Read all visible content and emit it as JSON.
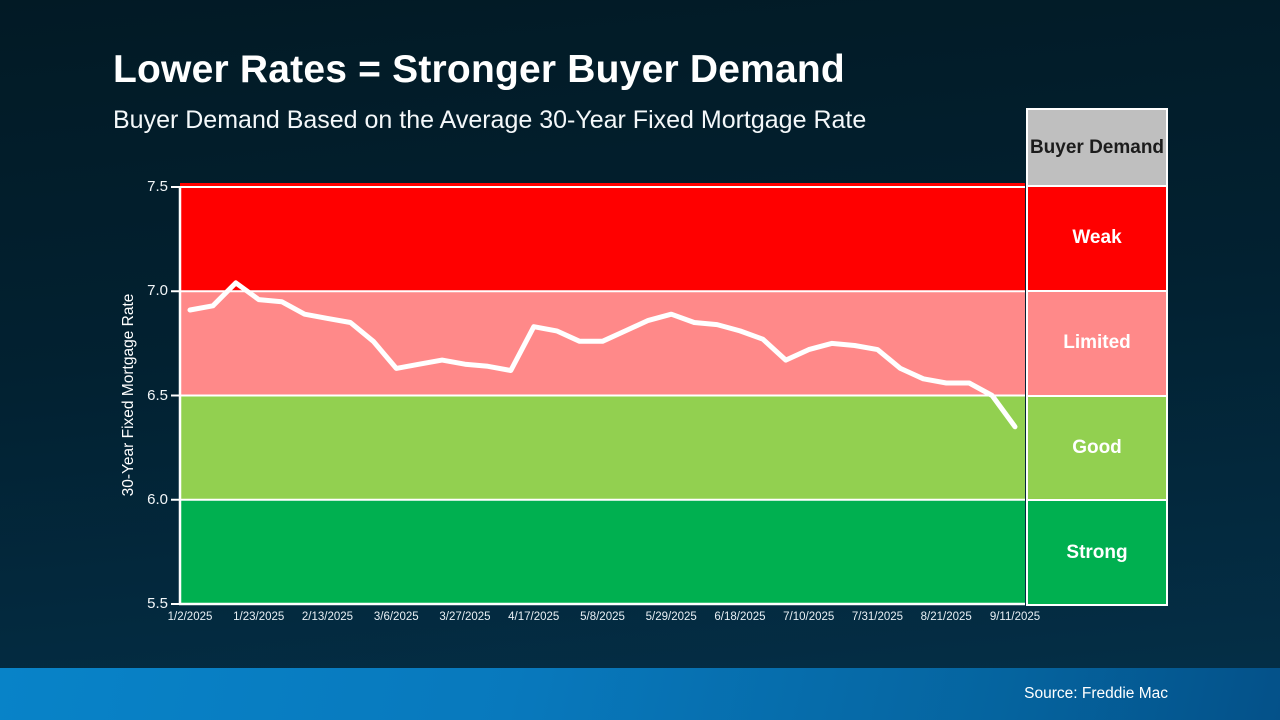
{
  "title": "Lower Rates = Stronger Buyer Demand",
  "subtitle": "Buyer Demand Based on the Average 30-Year Fixed Mortgage Rate",
  "source": "Source: Freddie Mac",
  "legend": {
    "header": "Buyer Demand",
    "header_bg": "#BFBFBF",
    "header_text_color": "#1C1C1C",
    "items": [
      {
        "label": "Weak",
        "color": "#FF0000"
      },
      {
        "label": "Limited",
        "color": "#FF8989"
      },
      {
        "label": "Good",
        "color": "#92D050"
      },
      {
        "label": "Strong",
        "color": "#00B050"
      }
    ]
  },
  "chart_data": {
    "type": "line",
    "title": "Average 30-Year Fixed Mortgage Rate, 2025 weekly",
    "xlabel": "",
    "ylabel": "30-Year Fixed Mortgage Rate",
    "ylim": [
      5.5,
      7.5
    ],
    "yticks": [
      7.5,
      7.0,
      6.5,
      6.0,
      5.5
    ],
    "grid": false,
    "legend_position": "right",
    "line_color": "#FFFFFF",
    "axis_color": "#FFFFFF",
    "bands": [
      {
        "from": 7.0,
        "to": 7.5,
        "color": "#FF0000",
        "label": "Weak"
      },
      {
        "from": 6.5,
        "to": 7.0,
        "color": "#FF8989",
        "label": "Limited"
      },
      {
        "from": 6.0,
        "to": 6.5,
        "color": "#92D050",
        "label": "Good"
      },
      {
        "from": 5.5,
        "to": 6.0,
        "color": "#00B050",
        "label": "Strong"
      }
    ],
    "x": [
      "1/2/2025",
      "1/9/2025",
      "1/16/2025",
      "1/23/2025",
      "1/30/2025",
      "2/6/2025",
      "2/13/2025",
      "2/20/2025",
      "2/27/2025",
      "3/6/2025",
      "3/13/2025",
      "3/20/2025",
      "3/27/2025",
      "4/3/2025",
      "4/10/2025",
      "4/17/2025",
      "4/24/2025",
      "5/1/2025",
      "5/8/2025",
      "5/15/2025",
      "5/22/2025",
      "5/29/2025",
      "6/5/2025",
      "6/12/2025",
      "6/18/2025",
      "6/26/2025",
      "7/3/2025",
      "7/10/2025",
      "7/17/2025",
      "7/24/2025",
      "7/31/2025",
      "8/7/2025",
      "8/14/2025",
      "8/21/2025",
      "8/28/2025",
      "9/4/2025",
      "9/11/2025"
    ],
    "x_tick_labels": [
      "1/2/2025",
      "1/23/2025",
      "2/13/2025",
      "3/6/2025",
      "3/27/2025",
      "4/17/2025",
      "5/8/2025",
      "5/29/2025",
      "6/18/2025",
      "7/10/2025",
      "7/31/2025",
      "8/21/2025",
      "9/11/2025"
    ],
    "series": [
      {
        "name": "30-Year Fixed Mortgage Rate",
        "values": [
          6.91,
          6.93,
          7.04,
          6.96,
          6.95,
          6.89,
          6.87,
          6.85,
          6.76,
          6.63,
          6.65,
          6.67,
          6.65,
          6.64,
          6.62,
          6.83,
          6.81,
          6.76,
          6.76,
          6.81,
          6.86,
          6.89,
          6.85,
          6.84,
          6.81,
          6.77,
          6.67,
          6.72,
          6.75,
          6.74,
          6.72,
          6.63,
          6.58,
          6.56,
          6.56,
          6.5,
          6.35
        ]
      }
    ]
  },
  "colors": {
    "background_top": "#021A25",
    "background_bottom": "#043049",
    "footer_left": "#0883C8",
    "footer_right": "#045189",
    "text": "#FFFFFF"
  }
}
